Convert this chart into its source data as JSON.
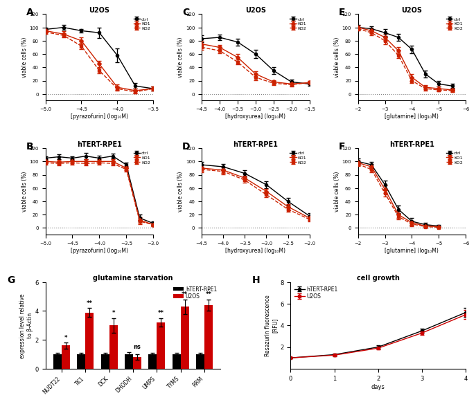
{
  "panel_A": {
    "title": "U2OS",
    "xlabel": "[pyrazofurin] (log₁₀M)",
    "ylabel": "viable cells (%)",
    "xlim": [
      -5.0,
      -3.5
    ],
    "ylim": [
      -10,
      120
    ],
    "xticks": [
      -5.0,
      -4.5,
      -4.0,
      -3.5
    ],
    "ctrl_x": [
      -5.0,
      -4.75,
      -4.5,
      -4.25,
      -4.0,
      -3.75,
      -3.5
    ],
    "ctrl_y": [
      97,
      100,
      95,
      92,
      58,
      12,
      8
    ],
    "ctrl_err": [
      3,
      4,
      3,
      8,
      10,
      4,
      3
    ],
    "ko1_x": [
      -5.0,
      -4.75,
      -4.5,
      -4.25,
      -4.0,
      -3.75,
      -3.5
    ],
    "ko1_y": [
      95,
      90,
      80,
      45,
      10,
      5,
      8
    ],
    "ko1_err": [
      3,
      4,
      5,
      5,
      4,
      3,
      3
    ],
    "ko2_x": [
      -5.0,
      -4.75,
      -4.5,
      -4.25,
      -4.0,
      -3.75,
      -3.5
    ],
    "ko2_y": [
      93,
      88,
      72,
      35,
      8,
      3,
      8
    ],
    "ko2_err": [
      3,
      3,
      5,
      4,
      3,
      2,
      3
    ]
  },
  "panel_B": {
    "title": "hTERT-RPE1",
    "xlabel": "[pyrazofurin] (log₁₀M)",
    "ylabel": "viable cells (%)",
    "xlim": [
      -5.0,
      -3.0
    ],
    "ylim": [
      -10,
      120
    ],
    "xticks": [
      -5.0,
      -4.5,
      -4.0,
      -3.5,
      -3.0
    ],
    "ctrl_x": [
      -5.0,
      -4.75,
      -4.5,
      -4.25,
      -4.0,
      -3.75,
      -3.5,
      -3.25,
      -3.0
    ],
    "ctrl_y": [
      105,
      107,
      105,
      108,
      105,
      108,
      95,
      15,
      7
    ],
    "ctrl_err": [
      3,
      4,
      3,
      5,
      4,
      4,
      3,
      5,
      3
    ],
    "ko1_x": [
      -5.0,
      -4.75,
      -4.5,
      -4.25,
      -4.0,
      -3.75,
      -3.5,
      -3.25,
      -3.0
    ],
    "ko1_y": [
      100,
      99,
      100,
      100,
      100,
      100,
      90,
      12,
      5
    ],
    "ko1_err": [
      3,
      3,
      3,
      3,
      3,
      3,
      3,
      4,
      2
    ],
    "ko2_x": [
      -5.0,
      -4.75,
      -4.5,
      -4.25,
      -4.0,
      -3.75,
      -3.5,
      -3.25,
      -3.0
    ],
    "ko2_y": [
      98,
      97,
      98,
      97,
      98,
      97,
      88,
      10,
      5
    ],
    "ko2_err": [
      3,
      3,
      3,
      3,
      3,
      3,
      3,
      4,
      2
    ]
  },
  "panel_C": {
    "title": "U2OS",
    "xlabel": "[hydroxyurea] (log₁₀M)",
    "ylabel": "viable cells (%)",
    "xlim": [
      -4.5,
      -1.5
    ],
    "ylim": [
      -10,
      120
    ],
    "xticks": [
      -4.5,
      -4.0,
      -3.5,
      -3.0,
      -2.5,
      -2.0,
      -1.5
    ],
    "ctrl_x": [
      -4.5,
      -4.0,
      -3.5,
      -3.0,
      -2.5,
      -2.0,
      -1.5
    ],
    "ctrl_y": [
      83,
      85,
      78,
      60,
      35,
      18,
      15
    ],
    "ctrl_err": [
      5,
      4,
      5,
      6,
      5,
      4,
      3
    ],
    "ko1_x": [
      -4.5,
      -4.0,
      -3.5,
      -3.0,
      -2.5,
      -2.0,
      -1.5
    ],
    "ko1_y": [
      75,
      70,
      55,
      30,
      18,
      15,
      17
    ],
    "ko1_err": [
      5,
      4,
      5,
      4,
      3,
      3,
      3
    ],
    "ko2_x": [
      -4.5,
      -4.0,
      -3.5,
      -3.0,
      -2.5,
      -2.0,
      -1.5
    ],
    "ko2_y": [
      70,
      65,
      48,
      25,
      16,
      14,
      17
    ],
    "ko2_err": [
      4,
      4,
      4,
      4,
      3,
      3,
      3
    ]
  },
  "panel_D": {
    "title": "hTERT-RPE1",
    "xlabel": "[hydroxyurea] (log₁₀M)",
    "ylabel": "viable cells (%)",
    "xlim": [
      -4.5,
      -2.0
    ],
    "ylim": [
      -10,
      120
    ],
    "xticks": [
      -4.5,
      -4.0,
      -3.5,
      -3.0,
      -2.5,
      -2.0
    ],
    "ctrl_x": [
      -4.5,
      -4.0,
      -3.5,
      -3.0,
      -2.5,
      -2.0
    ],
    "ctrl_y": [
      95,
      92,
      82,
      65,
      40,
      18
    ],
    "ctrl_err": [
      4,
      4,
      5,
      5,
      5,
      4
    ],
    "ko1_x": [
      -4.5,
      -4.0,
      -3.5,
      -3.0,
      -2.5,
      -2.0
    ],
    "ko1_y": [
      90,
      87,
      75,
      55,
      32,
      15
    ],
    "ko1_err": [
      4,
      4,
      4,
      4,
      4,
      3
    ],
    "ko2_x": [
      -4.5,
      -4.0,
      -3.5,
      -3.0,
      -2.5,
      -2.0
    ],
    "ko2_y": [
      88,
      85,
      72,
      50,
      28,
      13
    ],
    "ko2_err": [
      4,
      4,
      4,
      4,
      4,
      3
    ]
  },
  "panel_E": {
    "title": "U2OS",
    "xlabel": "[glutamine] (log₁₀M)",
    "ylabel": "viable cells (%)",
    "xlim": [
      -2,
      -6
    ],
    "ylim": [
      -10,
      120
    ],
    "xticks": [
      -2,
      -3,
      -4,
      -5,
      -6
    ],
    "ctrl_x": [
      -2.0,
      -2.5,
      -3.0,
      -3.5,
      -4.0,
      -4.5,
      -5.0,
      -5.5
    ],
    "ctrl_y": [
      100,
      98,
      92,
      85,
      67,
      30,
      15,
      12
    ],
    "ctrl_err": [
      4,
      4,
      5,
      5,
      6,
      5,
      4,
      3
    ],
    "ko1_x": [
      -2.0,
      -2.5,
      -3.0,
      -3.5,
      -4.0,
      -4.5,
      -5.0,
      -5.5
    ],
    "ko1_y": [
      100,
      95,
      85,
      65,
      25,
      10,
      8,
      6
    ],
    "ko1_err": [
      3,
      4,
      5,
      5,
      5,
      3,
      3,
      2
    ],
    "ko2_x": [
      -2.0,
      -2.5,
      -3.0,
      -3.5,
      -4.0,
      -4.5,
      -5.0,
      -5.5
    ],
    "ko2_y": [
      98,
      92,
      80,
      58,
      20,
      8,
      6,
      5
    ],
    "ko2_err": [
      3,
      4,
      5,
      4,
      4,
      3,
      2,
      2
    ]
  },
  "panel_F": {
    "title": "hTERT-RPE1",
    "xlabel": "[glutamine] (log₁₀M)",
    "ylabel": "viable cells (%)",
    "xlim": [
      -2,
      -6
    ],
    "ylim": [
      -10,
      120
    ],
    "xticks": [
      -2,
      -3,
      -4,
      -5,
      -6
    ],
    "ctrl_x": [
      -2.0,
      -2.5,
      -3.0,
      -3.5,
      -4.0,
      -4.5,
      -5.0
    ],
    "ctrl_y": [
      100,
      95,
      65,
      28,
      10,
      5,
      3
    ],
    "ctrl_err": [
      4,
      4,
      6,
      6,
      5,
      3,
      2
    ],
    "ko1_x": [
      -2.0,
      -2.5,
      -3.0,
      -3.5,
      -4.0,
      -4.5,
      -5.0
    ],
    "ko1_y": [
      98,
      92,
      58,
      20,
      8,
      3,
      2
    ],
    "ko1_err": [
      3,
      4,
      6,
      5,
      3,
      2,
      1
    ],
    "ko2_x": [
      -2.0,
      -2.5,
      -3.0,
      -3.5,
      -4.0,
      -4.5,
      -5.0
    ],
    "ko2_y": [
      96,
      88,
      52,
      17,
      6,
      2,
      1
    ],
    "ko2_err": [
      3,
      4,
      5,
      4,
      3,
      2,
      1
    ]
  },
  "panel_G": {
    "title": "glutamine starvation",
    "xlabel": "",
    "ylabel": "expression level relative\nto β-Actin",
    "ylim": [
      0,
      6
    ],
    "yticks": [
      0,
      2,
      4,
      6
    ],
    "categories": [
      "NUDT22",
      "TK1",
      "DCK",
      "DHODH",
      "UMPS",
      "TYMS",
      "RRM"
    ],
    "hTERT_values": [
      1.0,
      1.0,
      1.0,
      1.0,
      1.0,
      1.0,
      1.0
    ],
    "hTERT_err": [
      0.1,
      0.1,
      0.1,
      0.15,
      0.1,
      0.1,
      0.1
    ],
    "U2OS_values": [
      1.6,
      3.9,
      3.0,
      0.8,
      3.2,
      4.3,
      4.4
    ],
    "U2OS_err": [
      0.2,
      0.3,
      0.5,
      0.2,
      0.3,
      0.5,
      0.4
    ],
    "significance": [
      "*",
      "**",
      "*",
      "ns",
      "**",
      "**",
      "**"
    ],
    "hTERT_color": "#000000",
    "U2OS_color": "#cc0000"
  },
  "panel_H": {
    "title": "cell growth",
    "xlabel": "days",
    "ylabel": "Resazurin fluorescence\n[RFU]",
    "xlim": [
      0,
      4
    ],
    "ylim": [
      0,
      8
    ],
    "xticks": [
      0,
      1,
      2,
      3,
      4
    ],
    "yticks": [
      2,
      4,
      6,
      8
    ],
    "hTERT_x": [
      0,
      1,
      2,
      3,
      4
    ],
    "hTERT_y": [
      1.0,
      1.3,
      2.0,
      3.5,
      5.2
    ],
    "hTERT_err": [
      0.05,
      0.1,
      0.15,
      0.2,
      0.4
    ],
    "U2OS_x": [
      0,
      1,
      2,
      3,
      4
    ],
    "U2OS_y": [
      1.0,
      1.25,
      1.9,
      3.3,
      5.0
    ],
    "U2OS_err": [
      0.05,
      0.1,
      0.15,
      0.2,
      0.4
    ],
    "hTERT_color": "#000000",
    "U2OS_color": "#cc0000"
  },
  "ctrl_color": "#000000",
  "ko1_color": "#cc2200",
  "ko2_color": "#cc2200",
  "background_color": "#ffffff"
}
